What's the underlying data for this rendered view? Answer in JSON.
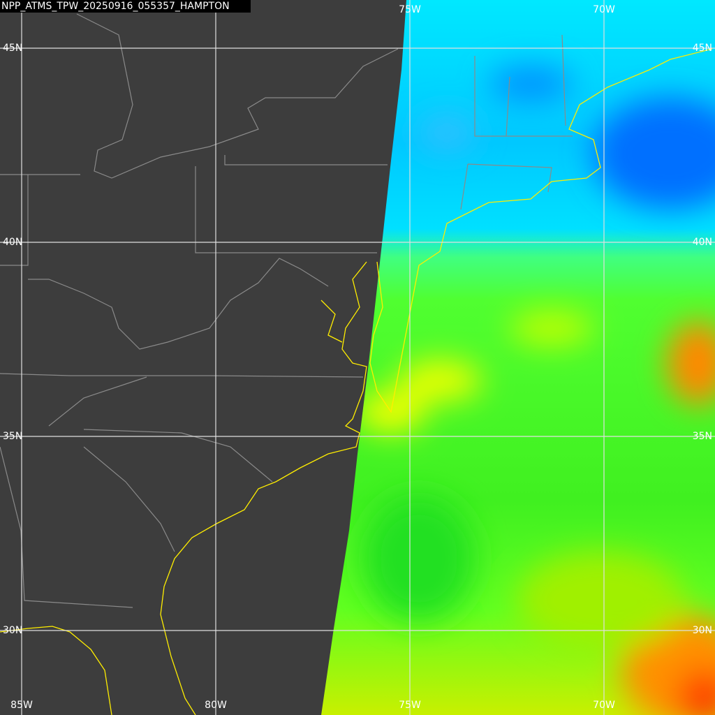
{
  "title": "NPP_ATMS_TPW_20250916_055357_HAMPTON",
  "graticule": {
    "latitudes": [
      "45N",
      "40N",
      "35N",
      "30N"
    ],
    "longitudes": [
      "85W",
      "80W",
      "75W",
      "70W"
    ]
  }
}
